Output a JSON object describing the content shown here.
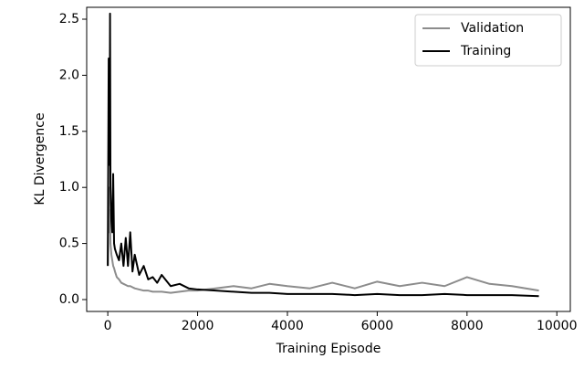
{
  "chart_data": {
    "type": "line",
    "xlabel": "Training Episode",
    "ylabel": "KL Divergence",
    "x": [
      0,
      20,
      40,
      50,
      60,
      80,
      100,
      120,
      140,
      160,
      200,
      250,
      300,
      350,
      400,
      450,
      500,
      550,
      600,
      700,
      800,
      900,
      1000,
      1100,
      1200,
      1400,
      1600,
      1800,
      2000,
      2400,
      2800,
      3200,
      3600,
      4000,
      4500,
      5000,
      5500,
      6000,
      6500,
      7000,
      7500,
      8000,
      8500,
      9000,
      9600
    ],
    "series": [
      {
        "name": "Validation",
        "color": "#8c8c8c",
        "values": [
          0.3,
          1.0,
          0.6,
          0.8,
          0.5,
          0.4,
          0.35,
          0.3,
          0.28,
          0.25,
          0.2,
          0.18,
          0.15,
          0.14,
          0.13,
          0.12,
          0.12,
          0.11,
          0.1,
          0.09,
          0.08,
          0.08,
          0.07,
          0.07,
          0.07,
          0.06,
          0.07,
          0.08,
          0.08,
          0.1,
          0.12,
          0.1,
          0.14,
          0.12,
          0.1,
          0.15,
          0.1,
          0.16,
          0.12,
          0.15,
          0.12,
          0.2,
          0.14,
          0.12,
          0.08
        ]
      },
      {
        "name": "Training",
        "color": "#000000",
        "values": [
          0.3,
          2.15,
          1.2,
          2.55,
          1.0,
          0.7,
          0.6,
          1.12,
          0.5,
          0.45,
          0.4,
          0.35,
          0.5,
          0.3,
          0.55,
          0.3,
          0.6,
          0.25,
          0.4,
          0.22,
          0.3,
          0.18,
          0.2,
          0.15,
          0.22,
          0.12,
          0.14,
          0.1,
          0.09,
          0.08,
          0.07,
          0.06,
          0.06,
          0.05,
          0.05,
          0.05,
          0.04,
          0.05,
          0.04,
          0.04,
          0.05,
          0.04,
          0.04,
          0.04,
          0.03
        ]
      }
    ],
    "xlim": [
      -470,
      10300
    ],
    "ylim": [
      -0.106,
      2.606
    ],
    "xticks": [
      0,
      2000,
      4000,
      6000,
      8000,
      10000
    ],
    "yticks": [
      {
        "value": 0,
        "label": "0.0"
      },
      {
        "value": 0.5,
        "label": "0.5"
      },
      {
        "value": 1,
        "label": "1.0"
      },
      {
        "value": 1.5,
        "label": "1.5"
      },
      {
        "value": 2,
        "label": "2.0"
      },
      {
        "value": 2.5,
        "label": "2.5"
      }
    ],
    "legend": "upper right",
    "grid": false
  }
}
